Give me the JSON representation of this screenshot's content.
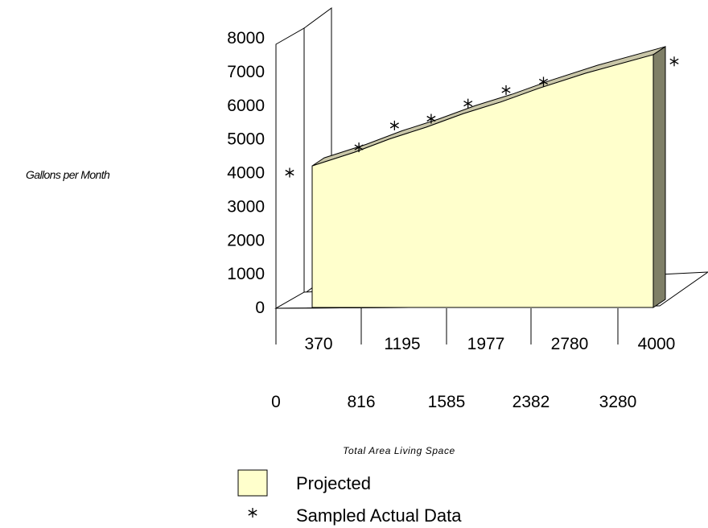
{
  "chart_data": {
    "type": "area",
    "ylabel": "Gallons per Month",
    "xlabel": "Total Area Living Space",
    "ylim": [
      0,
      8000
    ],
    "yticks": [
      "0",
      "1000",
      "2000",
      "3000",
      "4000",
      "5000",
      "6000",
      "7000",
      "8000"
    ],
    "xticks_upper": [
      "370",
      "1195",
      "1977",
      "2780",
      "4000"
    ],
    "xticks_lower": [
      "0",
      "816",
      "1585",
      "2382",
      "3280"
    ],
    "series": [
      {
        "name": "Projected",
        "color": "#ffffcc",
        "x": [
          370,
          816,
          1195,
          1585,
          1977,
          2382,
          2780,
          3280,
          4000
        ],
        "values": [
          4200,
          4600,
          5000,
          5350,
          5750,
          6100,
          6500,
          6950,
          7500
        ]
      },
      {
        "name": "Sampled Actual Data",
        "marker": "asterisk",
        "x": [
          0,
          816,
          1195,
          1585,
          1977,
          2382,
          2780,
          4000
        ],
        "values": [
          4000,
          4750,
          5400,
          5600,
          6050,
          6450,
          6700,
          7300
        ]
      }
    ],
    "legend": {
      "position": "bottom",
      "items": [
        "Projected",
        "Sampled Actual Data"
      ]
    },
    "grid": false
  }
}
